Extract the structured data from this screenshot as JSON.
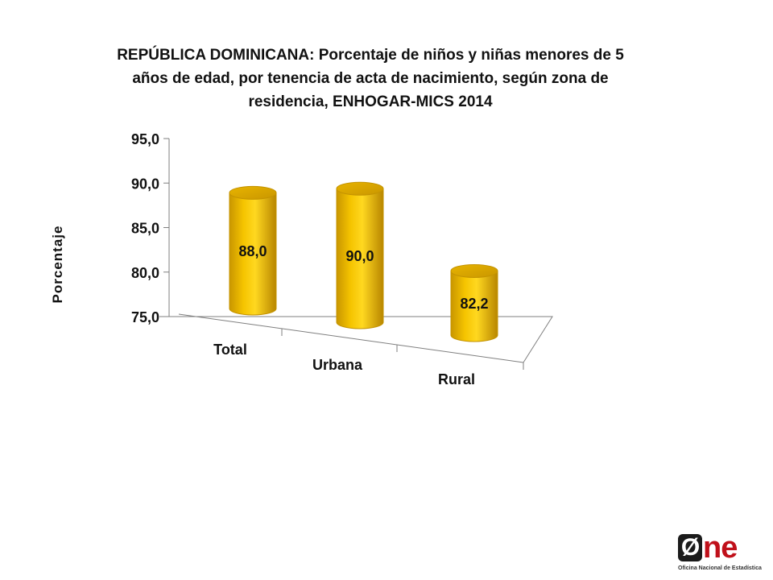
{
  "chart_data": {
    "type": "bar",
    "title_lines": [
      "REPÚBLICA DOMINICANA: Porcentaje de niños y niñas menores de 5",
      "años de edad, por tenencia de acta de nacimiento, según zona de",
      "residencia, ENHOGAR-MICS 2014"
    ],
    "ylabel": "Porcentaje",
    "xlabel": "",
    "categories": [
      "Total",
      "Urbana",
      "Rural"
    ],
    "values": [
      88.0,
      90.0,
      82.2
    ],
    "data_labels": [
      "88,0",
      "90,0",
      "82,2"
    ],
    "ylim": [
      75.0,
      95.0
    ],
    "yticks": [
      "95,0",
      "90,0",
      "85,0",
      "80,0",
      "75,0"
    ],
    "ytick_values": [
      95,
      90,
      85,
      80,
      75
    ],
    "bar_shape": "3d-cylinder",
    "bar_color": "#f5c400",
    "bar_edge_color": "#c49300",
    "grid": false,
    "legend": "none"
  },
  "logo": {
    "mark_zero": "Ø",
    "mark_rest": "ne",
    "tagline": "Oficina Nacional de Estadística"
  }
}
